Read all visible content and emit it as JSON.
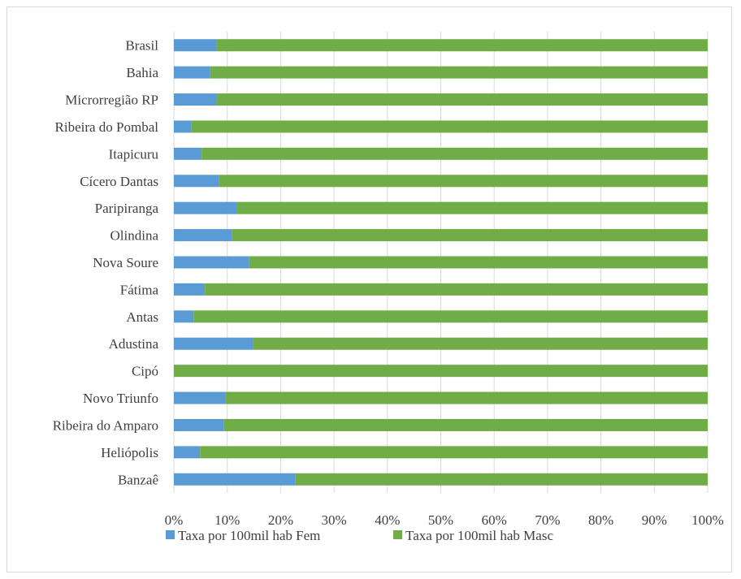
{
  "chart_data": {
    "type": "bar",
    "orientation": "horizontal",
    "stacking": "percent",
    "categories": [
      "Brasil",
      "Bahia",
      "Microrregião RP",
      "Ribeira do Pombal",
      "Itapicuru",
      "Cícero Dantas",
      "Paripiranga",
      "Olindina",
      "Nova Soure",
      "Fátima",
      "Antas",
      "Adustina",
      "Cipó",
      "Novo Triunfo",
      "Ribeira do Amparo",
      "Heliópolis",
      "Banzaê"
    ],
    "series": [
      {
        "name": "Taxa por 100mil hab Fem",
        "color": "#5b9bd5",
        "values": [
          8,
          6.8,
          8,
          3.3,
          5.2,
          8.5,
          11.8,
          10.9,
          14.1,
          5.8,
          3.7,
          14.9,
          0,
          9.6,
          9.4,
          4.9,
          22.8
        ]
      },
      {
        "name": "Taxa por 100mil hab Masc",
        "color": "#70ad47",
        "values": [
          92,
          93.2,
          92,
          96.7,
          94.8,
          91.5,
          88.2,
          89.1,
          85.9,
          94.2,
          96.3,
          85.1,
          100,
          90.4,
          90.6,
          95.1,
          77.2
        ]
      }
    ],
    "x_ticks": [
      "0%",
      "10%",
      "20%",
      "30%",
      "40%",
      "50%",
      "60%",
      "70%",
      "80%",
      "90%",
      "100%"
    ],
    "xlim": [
      0,
      100
    ],
    "grid": "vertical",
    "legend_position": "bottom"
  }
}
